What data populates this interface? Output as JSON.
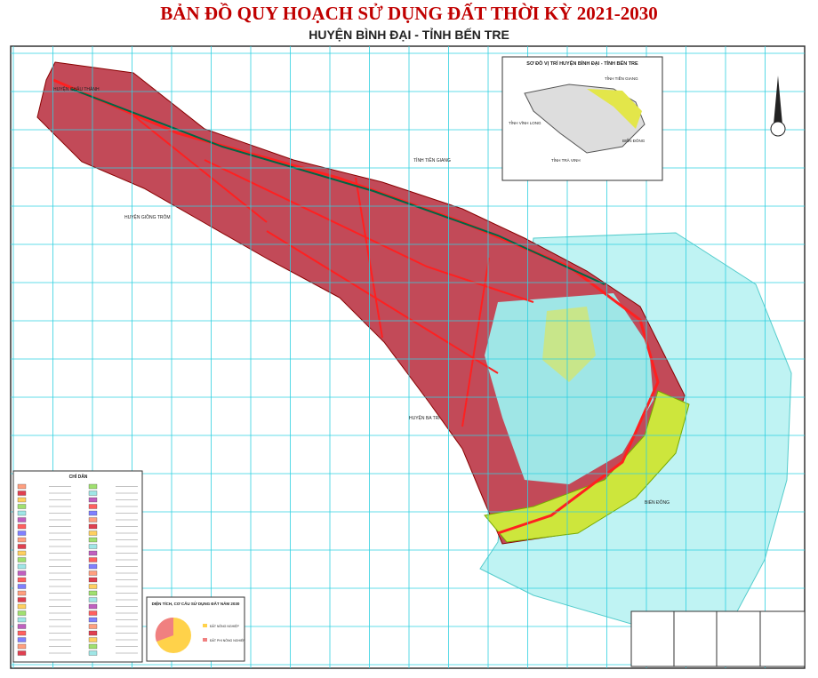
{
  "header": {
    "title": "BẢN ĐỒ QUY HOẠCH SỬ DỤNG ĐẤT THỜI KỲ 2021-2030",
    "subtitle": "HUYỆN BÌNH ĐẠI - TỈNH BẾN TRE"
  },
  "inset": {
    "title": "SƠ ĐỒ VỊ TRÍ HUYỆN BÌNH ĐẠI - TỈNH BẾN TRE",
    "labels": [
      "TỈNH TIỀN GIANG",
      "TỈNH VĨNH LONG",
      "TỈNH TRÀ VINH",
      "BIỂN ĐÔNG"
    ]
  },
  "map_labels": [
    "HUYỆN CHÂU THÀNH",
    "TỈNH TIỀN GIANG",
    "HUYỆN GIỒNG TRÔM",
    "HUYỆN BA TRI",
    "BIỂN ĐÔNG"
  ],
  "legend": {
    "title": "CHỈ DẪN"
  },
  "pie": {
    "title": "DIỆN TÍCH, CƠ CẤU SỬ DỤNG ĐẤT NĂM 2030",
    "items": [
      "ĐẤT NÔNG NGHIỆP",
      "ĐẤT PHI NÔNG NGHIỆP"
    ]
  }
}
